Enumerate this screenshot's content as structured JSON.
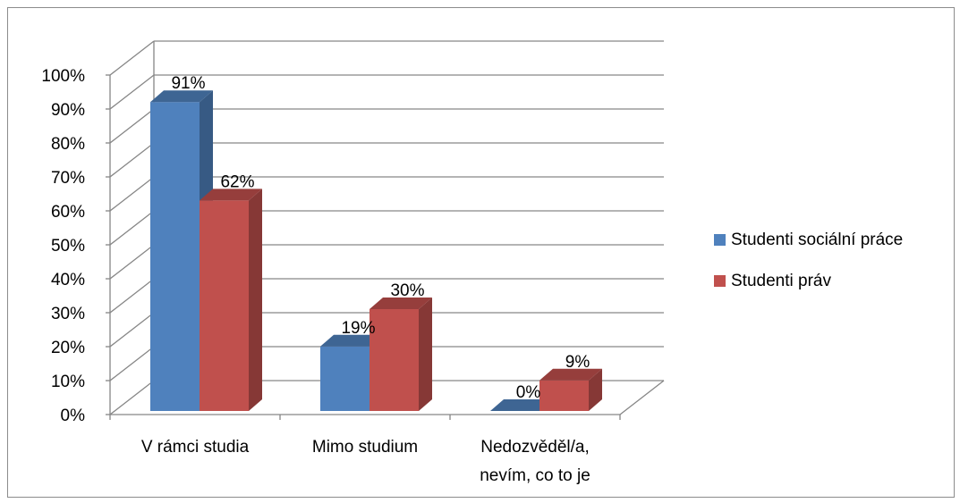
{
  "chart_data": {
    "type": "bar",
    "title": "",
    "xlabel": "",
    "ylabel": "",
    "ylim": [
      0,
      100
    ],
    "y_ticks": [
      "0%",
      "10%",
      "20%",
      "30%",
      "40%",
      "50%",
      "60%",
      "70%",
      "80%",
      "90%",
      "100%"
    ],
    "categories": [
      [
        "V rámci studia"
      ],
      [
        "Mimo studium"
      ],
      [
        "Nedozvěděl/a,",
        "nevím, co to je"
      ]
    ],
    "series": [
      {
        "name": "Studenti sociální práce",
        "values": [
          91,
          19,
          0
        ],
        "labels": [
          "91%",
          "19%",
          "0%"
        ],
        "color": "#4f81bd"
      },
      {
        "name": "Studenti práv",
        "values": [
          62,
          30,
          9
        ],
        "labels": [
          "62%",
          "30%",
          "9%"
        ],
        "color": "#c0504d"
      }
    ],
    "grid": true,
    "legend_position": "right",
    "style": "3d-clustered-column"
  }
}
